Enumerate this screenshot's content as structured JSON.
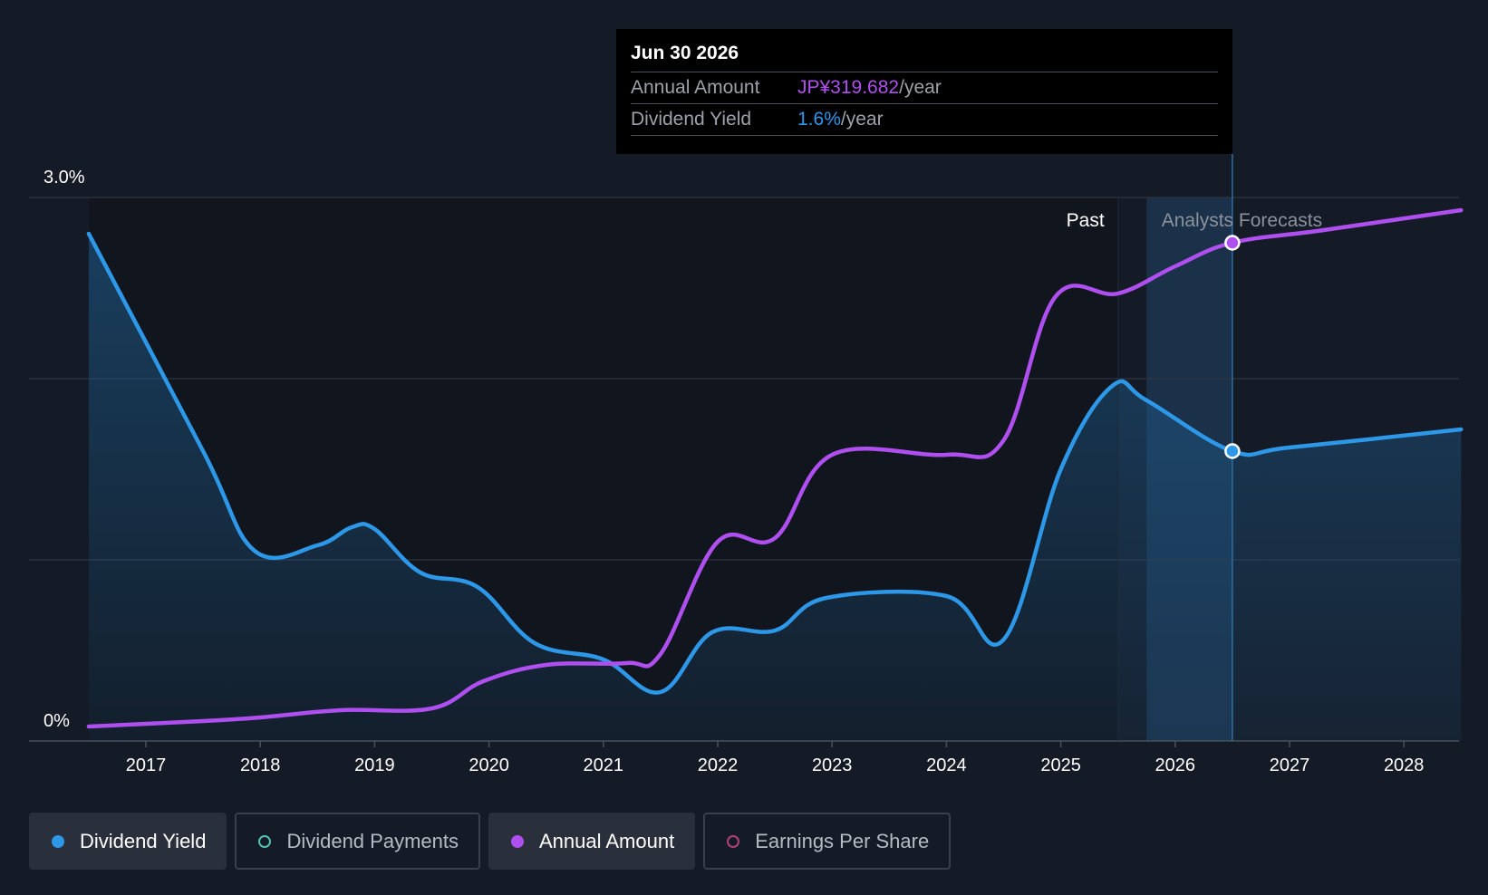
{
  "tooltip": {
    "date": "Jun 30 2026",
    "rows": [
      {
        "label": "Annual Amount",
        "value": "JP¥319.682",
        "unit": "/year",
        "color": "#b04ff0"
      },
      {
        "label": "Dividend Yield",
        "value": "1.6%",
        "unit": "/year",
        "color": "#2d97e8"
      }
    ]
  },
  "legend": [
    {
      "label": "Dividend Yield",
      "color": "#2d97e8",
      "active": true,
      "filled": true
    },
    {
      "label": "Dividend Payments",
      "color": "#4fc3b1",
      "active": false,
      "filled": false
    },
    {
      "label": "Annual Amount",
      "color": "#b04ff0",
      "active": true,
      "filled": true
    },
    {
      "label": "Earnings Per Share",
      "color": "#b0407a",
      "active": false,
      "filled": false
    }
  ],
  "chart_data": {
    "type": "line",
    "y_axis": {
      "min": 0,
      "max": 3.0,
      "top_label": "3.0%",
      "bottom_label": "0%",
      "gridlines": [
        0,
        1.0,
        2.0,
        3.0
      ]
    },
    "x_axis": {
      "min": 2016,
      "max": 2028.5,
      "ticks": [
        "2017",
        "2018",
        "2019",
        "2020",
        "2021",
        "2022",
        "2023",
        "2024",
        "2025",
        "2026",
        "2027",
        "2028"
      ]
    },
    "regions": {
      "past_label": "Past",
      "forecast_label": "Analysts Forecasts",
      "past_end": 2025.5,
      "forecast_band_start": 2025.75,
      "tooltip_x": 2026.5
    },
    "series": [
      {
        "name": "Dividend Yield",
        "color": "#2d97e8",
        "unit": "%",
        "points": [
          [
            2016.5,
            2.8
          ],
          [
            2017.5,
            1.6
          ],
          [
            2017.95,
            1.05
          ],
          [
            2018.5,
            1.08
          ],
          [
            2018.8,
            1.18
          ],
          [
            2019.0,
            1.17
          ],
          [
            2019.4,
            0.93
          ],
          [
            2019.9,
            0.85
          ],
          [
            2020.4,
            0.54
          ],
          [
            2021.0,
            0.45
          ],
          [
            2021.5,
            0.27
          ],
          [
            2021.95,
            0.6
          ],
          [
            2022.5,
            0.61
          ],
          [
            2022.95,
            0.79
          ],
          [
            2024.0,
            0.8
          ],
          [
            2024.5,
            0.56
          ],
          [
            2025.0,
            1.5
          ],
          [
            2025.45,
            1.96
          ],
          [
            2025.75,
            1.88
          ],
          [
            2026.5,
            1.6
          ],
          [
            2027.0,
            1.62
          ],
          [
            2028.5,
            1.72
          ]
        ]
      },
      {
        "name": "Annual Amount",
        "color": "#b04ff0",
        "unit": "JP¥",
        "points": [
          [
            2016.5,
            0.08
          ],
          [
            2017.5,
            0.11
          ],
          [
            2018.0,
            0.13
          ],
          [
            2018.7,
            0.17
          ],
          [
            2019.5,
            0.18
          ],
          [
            2019.95,
            0.33
          ],
          [
            2020.5,
            0.42
          ],
          [
            2021.2,
            0.43
          ],
          [
            2021.5,
            0.48
          ],
          [
            2022.0,
            1.1
          ],
          [
            2022.5,
            1.12
          ],
          [
            2023.0,
            1.58
          ],
          [
            2024.0,
            1.58
          ],
          [
            2024.5,
            1.66
          ],
          [
            2024.95,
            2.45
          ],
          [
            2025.5,
            2.47
          ],
          [
            2026.0,
            2.62
          ],
          [
            2026.5,
            2.75
          ],
          [
            2027.3,
            2.82
          ],
          [
            2028.5,
            2.93
          ]
        ]
      }
    ],
    "highlight_points": [
      {
        "series": "Annual Amount",
        "x": 2026.5,
        "y": 2.75
      },
      {
        "series": "Dividend Yield",
        "x": 2026.5,
        "y": 1.6
      }
    ]
  }
}
